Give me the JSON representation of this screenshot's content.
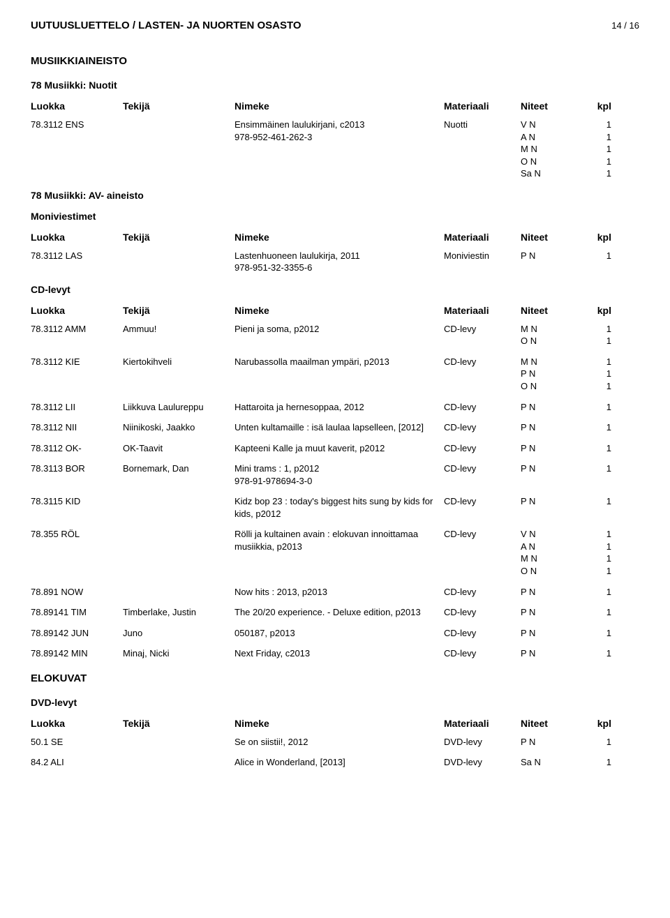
{
  "header": {
    "title": "UUTUUSLUETTELO / LASTEN- JA NUORTEN OSASTO",
    "page": "14 / 16"
  },
  "columns": {
    "luokka": "Luokka",
    "tekija": "Tekijä",
    "nimeke": "Nimeke",
    "materiaali": "Materiaali",
    "niteet": "Niteet",
    "kpl": "kpl"
  },
  "sections": [
    {
      "heading1": "MUSIIKKIAINEISTO",
      "heading2": "78 Musiikki: Nuotit",
      "hasTableHead": true,
      "rows": [
        {
          "luokka": "78.3112 ENS",
          "tekija": "",
          "nimeke": "Ensimmäinen laulukirjani, c2013\n978-952-461-262-3",
          "materiaali": "Nuotti",
          "niteet": [
            {
              "label": "V N",
              "kpl": "1"
            },
            {
              "label": "A N",
              "kpl": "1"
            },
            {
              "label": "M N",
              "kpl": "1"
            },
            {
              "label": "O N",
              "kpl": "1"
            },
            {
              "label": "Sa N",
              "kpl": "1"
            }
          ]
        }
      ]
    },
    {
      "heading2": "78 Musiikki: AV- aineisto",
      "subheading": "Moniviestimet",
      "hasTableHead": true,
      "rows": [
        {
          "luokka": "78.3112 LAS",
          "tekija": "",
          "nimeke": "Lastenhuoneen laulukirja, 2011\n978-951-32-3355-6",
          "materiaali": "Moniviestin",
          "niteet": [
            {
              "label": "P N",
              "kpl": "1"
            }
          ]
        }
      ]
    },
    {
      "subheading": "CD-levyt",
      "hasTableHead": true,
      "rows": [
        {
          "luokka": "78.3112 AMM",
          "tekija": "Ammuu!",
          "nimeke": "Pieni ja soma, p2012",
          "materiaali": "CD-levy",
          "niteet": [
            {
              "label": "M N",
              "kpl": "1"
            },
            {
              "label": "O N",
              "kpl": "1"
            }
          ]
        },
        {
          "luokka": "78.3112 KIE",
          "tekija": "Kiertokihveli",
          "nimeke": "Narubassolla maailman ympäri, p2013",
          "materiaali": "CD-levy",
          "niteet": [
            {
              "label": "M N",
              "kpl": "1"
            },
            {
              "label": "P N",
              "kpl": "1"
            },
            {
              "label": "O N",
              "kpl": "1"
            }
          ]
        },
        {
          "luokka": "78.3112 LII",
          "tekija": "Liikkuva Laulureppu",
          "nimeke": "Hattaroita ja hernesoppaa, 2012",
          "materiaali": "CD-levy",
          "niteet": [
            {
              "label": "P N",
              "kpl": "1"
            }
          ]
        },
        {
          "luokka": "78.3112 NII",
          "tekija": "Niinikoski, Jaakko",
          "nimeke": "Unten kultamaille : isä laulaa lapselleen, [2012]",
          "materiaali": "CD-levy",
          "niteet": [
            {
              "label": "P N",
              "kpl": "1"
            }
          ]
        },
        {
          "luokka": "78.3112 OK-",
          "tekija": "OK-Taavit",
          "nimeke": "Kapteeni Kalle ja muut kaverit, p2012",
          "materiaali": "CD-levy",
          "niteet": [
            {
              "label": "P N",
              "kpl": "1"
            }
          ]
        },
        {
          "luokka": "78.3113 BOR",
          "tekija": "Bornemark, Dan",
          "nimeke": "Mini trams : 1, p2012\n978-91-978694-3-0",
          "materiaali": "CD-levy",
          "niteet": [
            {
              "label": "P N",
              "kpl": "1"
            }
          ]
        },
        {
          "luokka": "78.3115 KID",
          "tekija": "",
          "nimeke": "Kidz bop 23 : today's biggest hits sung by kids for kids, p2012",
          "materiaali": "CD-levy",
          "niteet": [
            {
              "label": "P N",
              "kpl": "1"
            }
          ]
        },
        {
          "luokka": "78.355 RÖL",
          "tekija": "",
          "nimeke": "Rölli ja kultainen avain : elokuvan innoittamaa musiikkia, p2013",
          "materiaali": "CD-levy",
          "niteet": [
            {
              "label": "V N",
              "kpl": "1"
            },
            {
              "label": "A N",
              "kpl": "1"
            },
            {
              "label": "M N",
              "kpl": "1"
            },
            {
              "label": "O N",
              "kpl": "1"
            }
          ]
        },
        {
          "luokka": "78.891 NOW",
          "tekija": "",
          "nimeke": "Now hits : 2013, p2013",
          "materiaali": "CD-levy",
          "niteet": [
            {
              "label": "P N",
              "kpl": "1"
            }
          ]
        },
        {
          "luokka": "78.89141 TIM",
          "tekija": "Timberlake, Justin",
          "nimeke": "The 20/20 experience. - Deluxe edition, p2013",
          "materiaali": "CD-levy",
          "niteet": [
            {
              "label": "P N",
              "kpl": "1"
            }
          ]
        },
        {
          "luokka": "78.89142 JUN",
          "tekija": "Juno",
          "nimeke": "050187, p2013",
          "materiaali": "CD-levy",
          "niteet": [
            {
              "label": "P N",
              "kpl": "1"
            }
          ]
        },
        {
          "luokka": "78.89142 MIN",
          "tekija": "Minaj, Nicki",
          "nimeke": "Next Friday, c2013",
          "materiaali": "CD-levy",
          "niteet": [
            {
              "label": "P N",
              "kpl": "1"
            }
          ]
        }
      ]
    },
    {
      "heading1": "ELOKUVAT",
      "subheading": "DVD-levyt",
      "hasTableHead": true,
      "rows": [
        {
          "luokka": "50.1 SE",
          "tekija": "",
          "nimeke": "Se on siistii!, 2012",
          "materiaali": "DVD-levy",
          "niteet": [
            {
              "label": "P N",
              "kpl": "1"
            }
          ]
        },
        {
          "luokka": "84.2 ALI",
          "tekija": "",
          "nimeke": "Alice in Wonderland, [2013]",
          "materiaali": "DVD-levy",
          "niteet": [
            {
              "label": "Sa N",
              "kpl": "1"
            }
          ]
        }
      ]
    }
  ]
}
